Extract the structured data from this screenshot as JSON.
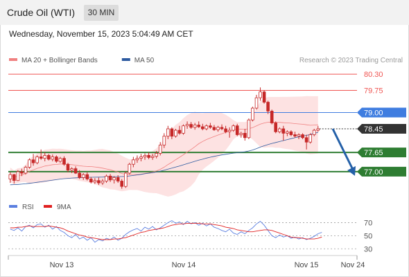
{
  "header": {
    "title": "Crude Oil (WTI)",
    "timeframe": "30 MIN"
  },
  "timestamp": "Wednesday, November 15, 2023 5:04:49 AM CET",
  "credit": "Research © 2023 Trading Central",
  "colors": {
    "candle": "#c62828",
    "bollinger_fill": "#fde2e2",
    "ma20": "#f08080",
    "ma50": "#2c5aa0",
    "resistance": "#ef5350",
    "pivot": "#3f7de0",
    "support": "#2e7d32",
    "current": "#333333",
    "arrow": "#2460a8",
    "rsi": "#5b7fe0",
    "rsi_ma": "#e02020"
  },
  "chart_data": [
    {
      "type": "line",
      "subtype": "candlestick",
      "x_axis": {
        "ticks": [
          "Nov 13",
          "Nov 14",
          "Nov 15",
          "Nov 24"
        ]
      },
      "ylim": [
        76.2,
        80.7
      ],
      "grid": false,
      "legend": {
        "placement": "top-left",
        "entries": [
          {
            "label": "MA 20 + Bollinger Bands",
            "color": "#f08080"
          },
          {
            "label": "MA 50",
            "color": "#2c5aa0"
          }
        ]
      },
      "levels": [
        {
          "label": "80.30",
          "value": 80.3,
          "kind": "resistance",
          "style": "thin-red"
        },
        {
          "label": "79.75",
          "value": 79.75,
          "kind": "resistance",
          "style": "thin-red"
        },
        {
          "label": "79.00",
          "value": 79.0,
          "kind": "pivot",
          "style": "blue"
        },
        {
          "label": "78.45",
          "value": 78.45,
          "kind": "current",
          "style": "dotted"
        },
        {
          "label": "77.65",
          "value": 77.65,
          "kind": "support",
          "style": "thick-green"
        },
        {
          "label": "77.00",
          "value": 77.0,
          "kind": "support",
          "style": "thick-green"
        }
      ],
      "forecast_arrow": {
        "from": 78.45,
        "to": 77.0,
        "direction": "down"
      },
      "series": [
        {
          "name": "MA 20 + Bollinger Bands",
          "type": "line"
        },
        {
          "name": "MA 50",
          "type": "line"
        }
      ],
      "candles": [
        [
          76.75,
          76.98,
          76.62,
          76.9
        ],
        [
          76.9,
          76.92,
          76.6,
          76.7
        ],
        [
          76.7,
          77.05,
          76.68,
          77.0
        ],
        [
          77.0,
          77.1,
          76.85,
          76.95
        ],
        [
          76.95,
          77.2,
          76.9,
          77.15
        ],
        [
          77.15,
          77.45,
          77.1,
          77.4
        ],
        [
          77.4,
          77.6,
          77.2,
          77.3
        ],
        [
          77.3,
          77.55,
          77.25,
          77.5
        ],
        [
          77.5,
          77.75,
          77.4,
          77.45
        ],
        [
          77.45,
          77.65,
          77.35,
          77.55
        ],
        [
          77.55,
          77.6,
          77.38,
          77.42
        ],
        [
          77.42,
          77.58,
          77.35,
          77.5
        ],
        [
          77.5,
          77.55,
          77.3,
          77.35
        ],
        [
          77.35,
          77.5,
          77.3,
          77.45
        ],
        [
          77.45,
          77.52,
          77.2,
          77.25
        ],
        [
          77.25,
          77.3,
          76.98,
          77.05
        ],
        [
          77.05,
          77.15,
          76.95,
          77.1
        ],
        [
          77.1,
          77.18,
          76.92,
          76.95
        ],
        [
          76.95,
          77.05,
          76.75,
          76.8
        ],
        [
          76.8,
          76.95,
          76.72,
          76.9
        ],
        [
          76.9,
          76.98,
          76.7,
          76.75
        ],
        [
          76.75,
          76.82,
          76.6,
          76.65
        ],
        [
          76.65,
          76.78,
          76.58,
          76.7
        ],
        [
          76.7,
          76.8,
          76.55,
          76.62
        ],
        [
          76.62,
          76.75,
          76.55,
          76.68
        ],
        [
          76.68,
          76.9,
          76.62,
          76.85
        ],
        [
          76.85,
          76.92,
          76.65,
          76.72
        ],
        [
          76.72,
          76.85,
          76.6,
          76.8
        ],
        [
          76.8,
          76.88,
          76.62,
          76.68
        ],
        [
          76.68,
          76.75,
          76.42,
          76.5
        ],
        [
          76.5,
          77.0,
          76.45,
          76.95
        ],
        [
          76.95,
          77.3,
          76.9,
          77.25
        ],
        [
          77.25,
          77.5,
          77.15,
          77.4
        ],
        [
          77.4,
          77.55,
          77.3,
          77.45
        ],
        [
          77.45,
          77.6,
          77.35,
          77.5
        ],
        [
          77.5,
          77.62,
          77.4,
          77.55
        ],
        [
          77.55,
          77.65,
          77.42,
          77.48
        ],
        [
          77.48,
          77.6,
          77.4,
          77.52
        ],
        [
          77.52,
          77.7,
          77.45,
          77.62
        ],
        [
          77.62,
          78.0,
          77.55,
          77.9
        ],
        [
          77.9,
          78.3,
          77.8,
          78.2
        ],
        [
          78.2,
          78.55,
          78.1,
          78.45
        ],
        [
          78.45,
          78.5,
          78.1,
          78.2
        ],
        [
          78.2,
          78.45,
          78.15,
          78.4
        ],
        [
          78.4,
          78.55,
          78.25,
          78.3
        ],
        [
          78.3,
          78.6,
          78.25,
          78.55
        ],
        [
          78.55,
          78.7,
          78.45,
          78.6
        ],
        [
          78.6,
          78.68,
          78.45,
          78.5
        ],
        [
          78.5,
          78.65,
          78.42,
          78.58
        ],
        [
          78.58,
          78.7,
          78.48,
          78.52
        ],
        [
          78.52,
          78.62,
          78.4,
          78.45
        ],
        [
          78.45,
          78.6,
          78.4,
          78.55
        ],
        [
          78.55,
          78.65,
          78.45,
          78.5
        ],
        [
          78.5,
          78.58,
          78.38,
          78.42
        ],
        [
          78.42,
          78.55,
          78.35,
          78.5
        ],
        [
          78.5,
          78.6,
          78.4,
          78.45
        ],
        [
          78.45,
          78.55,
          78.3,
          78.35
        ],
        [
          78.35,
          78.5,
          78.15,
          78.4
        ],
        [
          78.4,
          78.6,
          78.35,
          78.55
        ],
        [
          78.55,
          78.62,
          78.2,
          78.25
        ],
        [
          78.25,
          78.35,
          78.15,
          78.3
        ],
        [
          78.3,
          78.45,
          78.05,
          78.15
        ],
        [
          78.15,
          78.8,
          78.1,
          78.75
        ],
        [
          78.75,
          79.2,
          78.7,
          79.15
        ],
        [
          79.15,
          79.6,
          79.1,
          79.5
        ],
        [
          79.5,
          79.85,
          79.4,
          79.7
        ],
        [
          79.7,
          79.75,
          79.3,
          79.35
        ],
        [
          79.35,
          79.4,
          78.95,
          79.05
        ],
        [
          79.05,
          79.1,
          78.6,
          78.65
        ],
        [
          78.65,
          78.7,
          78.3,
          78.35
        ],
        [
          78.35,
          78.5,
          78.3,
          78.45
        ],
        [
          78.45,
          78.55,
          78.05,
          78.3
        ],
        [
          78.3,
          78.4,
          78.2,
          78.35
        ],
        [
          78.35,
          78.4,
          78.2,
          78.25
        ],
        [
          78.25,
          78.35,
          78.15,
          78.2
        ],
        [
          78.2,
          78.3,
          78.1,
          78.25
        ],
        [
          78.25,
          78.3,
          78.1,
          78.15
        ],
        [
          78.15,
          78.25,
          77.75,
          78.0
        ],
        [
          78.0,
          78.3,
          77.95,
          78.25
        ],
        [
          78.25,
          78.45,
          78.2,
          78.4
        ],
        [
          78.4,
          78.55,
          78.35,
          78.45
        ]
      ]
    },
    {
      "type": "line",
      "title": "RSI",
      "ylim": [
        25,
        80
      ],
      "y_ticks": [
        70,
        50,
        30
      ],
      "legend": {
        "placement": "top-left",
        "entries": [
          {
            "label": "RSI",
            "color": "#5b7fe0"
          },
          {
            "label": "9MA",
            "color": "#e02020"
          }
        ]
      },
      "series": [
        {
          "name": "RSI",
          "values": [
            60,
            58,
            62,
            57,
            64,
            66,
            62,
            67,
            68,
            63,
            66,
            60,
            64,
            58,
            55,
            50,
            47,
            52,
            45,
            48,
            43,
            47,
            40,
            44,
            42,
            46,
            44,
            48,
            43,
            46,
            52,
            56,
            59,
            61,
            57,
            63,
            60,
            64,
            59,
            62,
            66,
            70,
            73,
            69,
            71,
            67,
            72,
            68,
            70,
            66,
            69,
            65,
            68,
            63,
            61,
            58,
            56,
            60,
            54,
            52,
            56,
            53,
            58,
            62,
            68,
            72,
            66,
            58,
            50,
            47,
            51,
            48,
            50,
            46,
            48,
            45,
            47,
            44,
            46,
            49,
            53,
            55
          ]
        },
        {
          "name": "9MA",
          "values": [
            62,
            62,
            63,
            63,
            64,
            65,
            64,
            64,
            64,
            64,
            65,
            64,
            63,
            62,
            60,
            57,
            55,
            53,
            51,
            50,
            48,
            47,
            46,
            45,
            44,
            44,
            44,
            45,
            45,
            46,
            47,
            49,
            51,
            53,
            55,
            56,
            58,
            59,
            60,
            61,
            62,
            64,
            66,
            67,
            68,
            68,
            69,
            69,
            69,
            69,
            68,
            68,
            68,
            67,
            66,
            65,
            63,
            62,
            61,
            59,
            58,
            57,
            56,
            56,
            57,
            58,
            59,
            59,
            58,
            56,
            54,
            52,
            50,
            48,
            47,
            47,
            46,
            45,
            45,
            45,
            46,
            48
          ]
        }
      ]
    }
  ]
}
